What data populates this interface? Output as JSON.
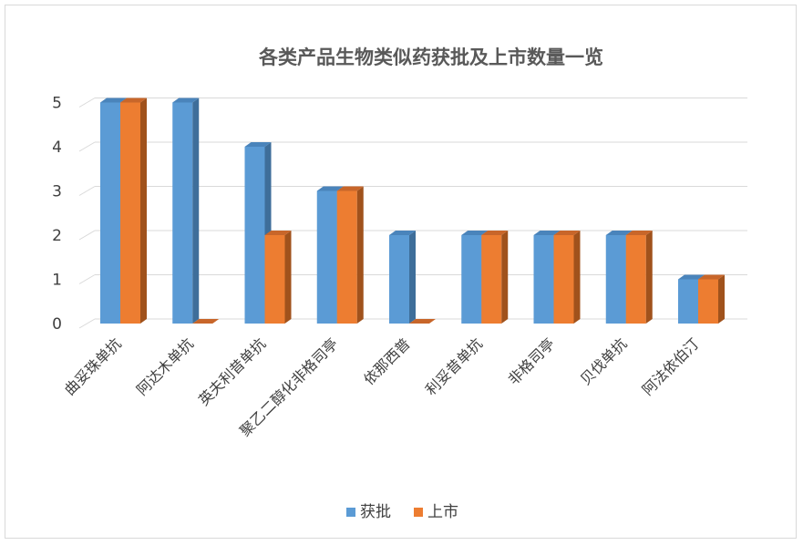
{
  "chart_data": {
    "type": "bar",
    "title": "各类产品生物类似药获批及上市数量一览",
    "categories": [
      "曲妥珠单抗",
      "阿达木单抗",
      "英夫利昔单抗",
      "聚乙二醇化非格司亭",
      "依那西普",
      "利妥昔单抗",
      "非格司亭",
      "贝伐单抗",
      "阿法依伯汀"
    ],
    "series": [
      {
        "name": "获批",
        "values": [
          5,
          5,
          4,
          3,
          2,
          2,
          2,
          2,
          1
        ]
      },
      {
        "name": "上市",
        "values": [
          5,
          0,
          2,
          3,
          0,
          2,
          2,
          2,
          1
        ]
      }
    ],
    "xlabel": "",
    "ylabel": "",
    "ylim": [
      0,
      5
    ],
    "yticks": [
      "0",
      "1",
      "2",
      "3",
      "4",
      "5"
    ],
    "grid": true,
    "legend": "bottom",
    "style": "3d-column",
    "colors": {
      "获批": {
        "front": "#5b9bd5",
        "side": "#3e6e9a",
        "top": "#4a84bb"
      },
      "上市": {
        "front": "#ed7d31",
        "side": "#a0521c",
        "top": "#c8662a"
      },
      "grid": "#d9d9d9"
    }
  }
}
